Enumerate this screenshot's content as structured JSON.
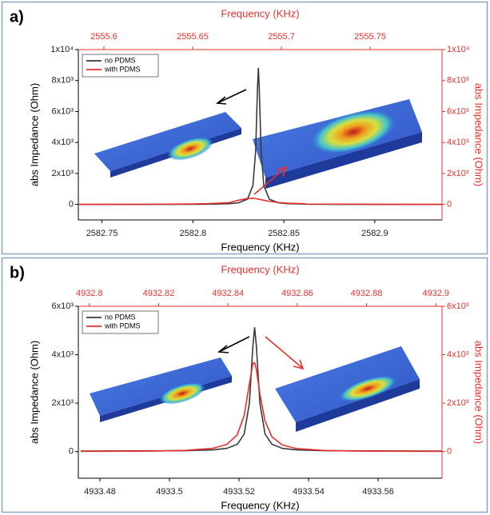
{
  "chart_data": [
    {
      "type": "line",
      "panel_label": "a)",
      "xlabel": "Frequency (KHz)",
      "ylabel": "abs Impedance (Ohm)",
      "x2label": "Frequency (KHz)",
      "y2label": "abs Impedance (Ohm)",
      "secondary_axis_color": "#e8302c",
      "x": [
        2582.737,
        2582.76,
        2582.78,
        2582.8,
        2582.81,
        2582.82,
        2582.825,
        2582.83,
        2582.833,
        2582.8345,
        2582.8355,
        2582.836,
        2582.8365,
        2582.8375,
        2582.839,
        2582.842,
        2582.847,
        2582.852,
        2582.862,
        2582.882,
        2582.91,
        2582.937
      ],
      "series": [
        {
          "name": "no PDMS",
          "color": "#3a3a3a",
          "values": [
            1,
            2,
            4,
            10,
            19,
            49,
            104,
            338,
            1218,
            3434,
            7496,
            8800,
            7496,
            3434,
            1218,
            338,
            104,
            49,
            19,
            4,
            2,
            1
          ]
        },
        {
          "name": "with PDMS",
          "color": "#e8302c",
          "values": [
            4,
            7,
            14,
            33,
            58,
            116,
            268,
            385,
            396,
            376,
            356,
            345,
            333,
            307,
            268,
            200,
            123,
            80,
            40,
            15,
            6,
            4
          ]
        }
      ],
      "xlim": [
        2582.737,
        2582.937
      ],
      "xticks": [
        2582.75,
        2582.8,
        2582.85,
        2582.9
      ],
      "x2lim": [
        2555.5856,
        2555.7905
      ],
      "x2ticks": [
        2555.6,
        2555.65,
        2555.7,
        2555.75
      ],
      "ylim": [
        -1000,
        10000
      ],
      "yticks": [
        0,
        {
          "value": 2000,
          "label": "2x10³"
        },
        {
          "value": 4000,
          "label": "4x10³"
        },
        {
          "value": 6000,
          "label": "6x10³"
        },
        {
          "value": 8000,
          "label": "8x10³"
        },
        {
          "value": 10000,
          "label": "1x10⁴"
        }
      ],
      "y2lim": [
        -1000,
        10000
      ],
      "y2ticks": [
        0,
        {
          "value": 2000,
          "label": "2x10³"
        },
        {
          "value": 4000,
          "label": "4x10³"
        },
        {
          "value": 6000,
          "label": "6x10³"
        },
        {
          "value": 8000,
          "label": "8x10³"
        },
        {
          "value": 10000,
          "label": "1x10⁴"
        }
      ],
      "legend": "upper left"
    },
    {
      "type": "line",
      "panel_label": "b)",
      "xlabel": "Frequency (KHz)",
      "ylabel": "abs Impedance (Ohm)",
      "x2label": "Frequency (KHz)",
      "y2label": "abs Impedance (Ohm)",
      "secondary_axis_color": "#e8302c",
      "x": [
        4933.4745,
        4933.4945,
        4933.5045,
        4933.5125,
        4933.5165,
        4933.5195,
        4933.5215,
        4933.523,
        4933.524,
        4933.5245,
        4933.525,
        4933.526,
        4933.5275,
        4933.5295,
        4933.5325,
        4933.5365,
        4933.5445,
        4933.5545,
        4933.5784
      ],
      "series": [
        {
          "name": "no PDMS",
          "color": "#3a3a3a",
          "values": [
            23,
            28,
            38,
            70,
            132,
            298,
            723,
            2010,
            4364,
            5120,
            4364,
            2010,
            723,
            298,
            132,
            70,
            38,
            28,
            23
          ]
        },
        {
          "name": "with PDMS",
          "color": "#e8302c",
          "values": [
            8,
            22,
            49,
            135,
            296,
            690,
            1492,
            2805,
            3638,
            3672,
            3386,
            2393,
            1260,
            605,
            270,
            127,
            47,
            21,
            7
          ]
        }
      ],
      "xlim": [
        4933.4738,
        4933.5784
      ],
      "xticks": [
        4933.48,
        4933.5,
        4933.52,
        4933.54,
        4933.56
      ],
      "x2lim": [
        4932.7968,
        4932.9018
      ],
      "x2ticks": [
        4932.8,
        4932.82,
        4932.84,
        4932.86,
        4932.88,
        4932.9
      ],
      "ylim": [
        -1100,
        6000
      ],
      "yticks": [
        0,
        {
          "value": 2000,
          "label": "2x10³"
        },
        {
          "value": 4000,
          "label": "4x10³"
        },
        {
          "value": 6000,
          "label": "6x10³"
        }
      ],
      "y2lim": [
        -1100,
        6000
      ],
      "y2ticks": [
        0,
        {
          "value": 2000,
          "label": "2x10³"
        },
        {
          "value": 4000,
          "label": "4x10³"
        },
        {
          "value": 6000,
          "label": "6x10³"
        }
      ],
      "legend": "upper left"
    }
  ]
}
